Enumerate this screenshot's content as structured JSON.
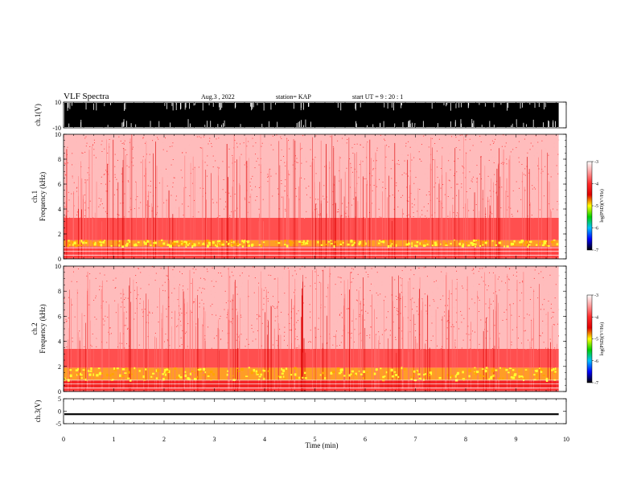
{
  "header": {
    "title": "VLF Spectra",
    "date": "Aug.3  , 2022",
    "station": "station= KAP",
    "start": "start  UT  =   9  : 20 : 1"
  },
  "colorbar": {
    "label": "log(PSD)(V²/Hz)",
    "ticks": [
      "-3",
      "-4",
      "-5",
      "-6",
      "-7"
    ],
    "colors": [
      "#ffffff",
      "#ff9a9a",
      "#ff2a2a",
      "#e00000",
      "#ffff00",
      "#00d000",
      "#00c0ff",
      "#0000ff",
      "#000000"
    ]
  },
  "chart_data": [
    {
      "type": "area",
      "id": "ch1-waveform",
      "ylabel": "ch.1(V)",
      "ylim": [
        -10,
        10
      ],
      "yticks": [
        "10",
        "-10"
      ],
      "xlim": [
        0,
        10
      ],
      "series": [
        {
          "color": "#000000",
          "envelope": "saturated between -10 and 10 with sparse dropouts"
        }
      ]
    },
    {
      "type": "heatmap",
      "id": "ch1-spectrogram",
      "ylabel": "ch.1\nFrequency (kHz)",
      "ylim": [
        0,
        10
      ],
      "yticks": [
        "0",
        "2",
        "4",
        "6",
        "8",
        "10"
      ],
      "xlim": [
        0,
        10
      ],
      "data_end_min": 9.85,
      "bands": [
        {
          "from": 0.0,
          "to": 0.3,
          "level": -3.6
        },
        {
          "from": 0.3,
          "to": 1.0,
          "level": -3.8
        },
        {
          "from": 1.0,
          "to": 1.5,
          "level": -4.4
        },
        {
          "from": 1.5,
          "to": 3.3,
          "level": -3.7
        },
        {
          "from": 3.3,
          "to": 10.0,
          "level": -3.3
        }
      ]
    },
    {
      "type": "heatmap",
      "id": "ch2-spectrogram",
      "ylabel": "ch.2\nFrequency (kHz)",
      "ylim": [
        0,
        10
      ],
      "yticks": [
        "0",
        "2",
        "4",
        "6",
        "8",
        "10"
      ],
      "xlim": [
        0,
        10
      ],
      "data_end_min": 9.85,
      "bands": [
        {
          "from": 0.0,
          "to": 0.3,
          "level": -3.6
        },
        {
          "from": 0.3,
          "to": 0.9,
          "level": -3.9
        },
        {
          "from": 0.9,
          "to": 1.9,
          "level": -4.5
        },
        {
          "from": 1.9,
          "to": 3.4,
          "level": -3.7
        },
        {
          "from": 3.4,
          "to": 10.0,
          "level": -3.3
        }
      ]
    },
    {
      "type": "line",
      "id": "ch3-waveform",
      "ylabel": "ch.3(V)",
      "ylim": [
        -5,
        5
      ],
      "yticks": [
        "5",
        "0",
        "-5"
      ],
      "xlim": [
        0,
        10
      ],
      "xlabel": "Time  (min)",
      "xticks": [
        "0",
        "1",
        "2",
        "3",
        "4",
        "5",
        "6",
        "7",
        "8",
        "9",
        "10"
      ],
      "series": [
        {
          "color": "#000000",
          "mean": -1.2,
          "spread": 0.35
        }
      ]
    }
  ]
}
